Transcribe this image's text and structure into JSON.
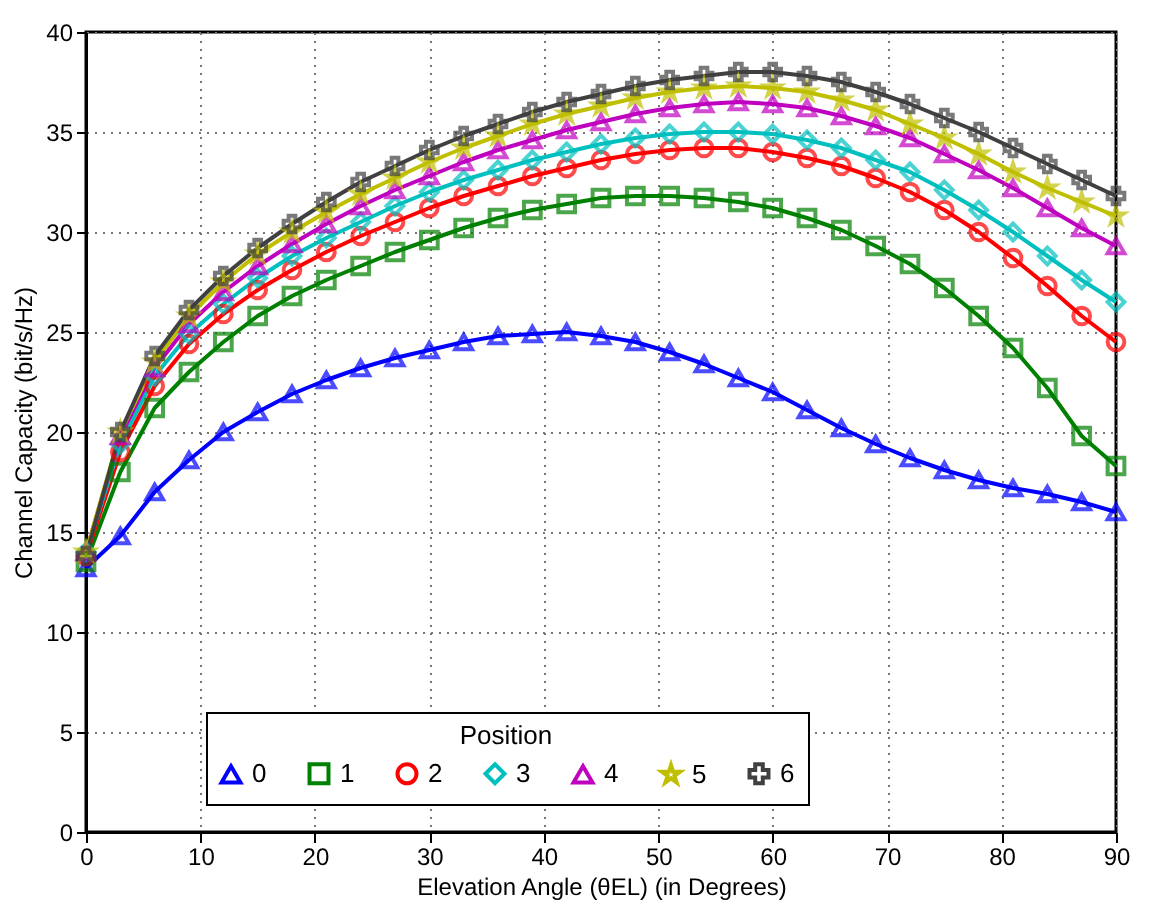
{
  "chart_data": {
    "type": "line",
    "xlabel": "Elevation Angle (θEL) (in Degrees)",
    "ylabel": "Channel Capacity (bit/s/Hz)",
    "legend_title": "Position",
    "x": [
      0,
      3,
      6,
      9,
      12,
      15,
      18,
      21,
      24,
      27,
      30,
      33,
      36,
      39,
      42,
      45,
      48,
      51,
      54,
      57,
      60,
      63,
      66,
      69,
      72,
      75,
      78,
      81,
      84,
      87,
      90
    ],
    "xlim": [
      0,
      90
    ],
    "xticks": [
      0,
      10,
      20,
      30,
      40,
      50,
      60,
      70,
      80,
      90
    ],
    "ylim": [
      0,
      40
    ],
    "yticks": [
      0,
      5,
      10,
      15,
      20,
      25,
      30,
      35,
      40
    ],
    "grid": true,
    "legend": "bottom",
    "line_style": "solid",
    "series": [
      {
        "name": "0",
        "color": "#0000ff",
        "marker": "triangle",
        "values": [
          13.2,
          14.8,
          17.0,
          18.6,
          20.0,
          21.0,
          21.9,
          22.6,
          23.2,
          23.7,
          24.1,
          24.5,
          24.8,
          24.9,
          25.0,
          24.8,
          24.5,
          24.0,
          23.4,
          22.7,
          22.0,
          21.1,
          20.2,
          19.4,
          18.7,
          18.1,
          17.6,
          17.2,
          16.9,
          16.5,
          16.0
        ]
      },
      {
        "name": "1",
        "color": "#008000",
        "marker": "square",
        "values": [
          13.5,
          18.0,
          21.2,
          23.0,
          24.5,
          25.8,
          26.8,
          27.6,
          28.3,
          29.0,
          29.6,
          30.2,
          30.7,
          31.1,
          31.4,
          31.7,
          31.8,
          31.8,
          31.7,
          31.5,
          31.2,
          30.7,
          30.1,
          29.3,
          28.4,
          27.2,
          25.8,
          24.2,
          22.2,
          19.8,
          18.3
        ]
      },
      {
        "name": "2",
        "color": "#ff0000",
        "marker": "circle",
        "values": [
          13.8,
          19.0,
          22.3,
          24.4,
          25.9,
          27.1,
          28.1,
          29.0,
          29.8,
          30.5,
          31.2,
          31.8,
          32.3,
          32.8,
          33.2,
          33.6,
          33.9,
          34.1,
          34.2,
          34.2,
          34.0,
          33.7,
          33.3,
          32.7,
          32.0,
          31.1,
          30.0,
          28.7,
          27.3,
          25.8,
          24.5
        ]
      },
      {
        "name": "3",
        "color": "#00bfbf",
        "marker": "diamond",
        "values": [
          14.0,
          19.4,
          22.8,
          24.9,
          26.4,
          27.7,
          28.8,
          29.7,
          30.5,
          31.3,
          32.0,
          32.6,
          33.1,
          33.6,
          34.0,
          34.4,
          34.7,
          34.9,
          35.0,
          35.0,
          34.9,
          34.6,
          34.2,
          33.6,
          33.0,
          32.1,
          31.1,
          30.0,
          28.8,
          27.6,
          26.5
        ]
      },
      {
        "name": "4",
        "color": "#bf00bf",
        "marker": "triangle",
        "values": [
          14.0,
          19.8,
          23.2,
          25.4,
          27.0,
          28.3,
          29.4,
          30.4,
          31.3,
          32.1,
          32.8,
          33.5,
          34.1,
          34.6,
          35.1,
          35.5,
          35.9,
          36.2,
          36.4,
          36.5,
          36.4,
          36.2,
          35.8,
          35.3,
          34.7,
          33.9,
          33.1,
          32.2,
          31.2,
          30.2,
          29.3
        ]
      },
      {
        "name": "5",
        "color": "#bfbf00",
        "marker": "star",
        "values": [
          14.0,
          20.0,
          23.5,
          25.8,
          27.5,
          28.9,
          30.0,
          31.0,
          31.9,
          32.7,
          33.5,
          34.2,
          34.8,
          35.4,
          35.9,
          36.3,
          36.7,
          37.0,
          37.2,
          37.3,
          37.2,
          37.0,
          36.6,
          36.1,
          35.4,
          34.7,
          33.9,
          33.0,
          32.2,
          31.5,
          30.8
        ]
      },
      {
        "name": "6",
        "color": "#404040",
        "marker": "cross",
        "values": [
          13.8,
          20.0,
          23.8,
          26.1,
          27.8,
          29.2,
          30.4,
          31.5,
          32.5,
          33.3,
          34.1,
          34.8,
          35.4,
          36.0,
          36.5,
          36.9,
          37.3,
          37.6,
          37.8,
          38.0,
          38.0,
          37.8,
          37.5,
          37.0,
          36.4,
          35.7,
          35.0,
          34.2,
          33.4,
          32.6,
          31.8
        ]
      }
    ]
  }
}
